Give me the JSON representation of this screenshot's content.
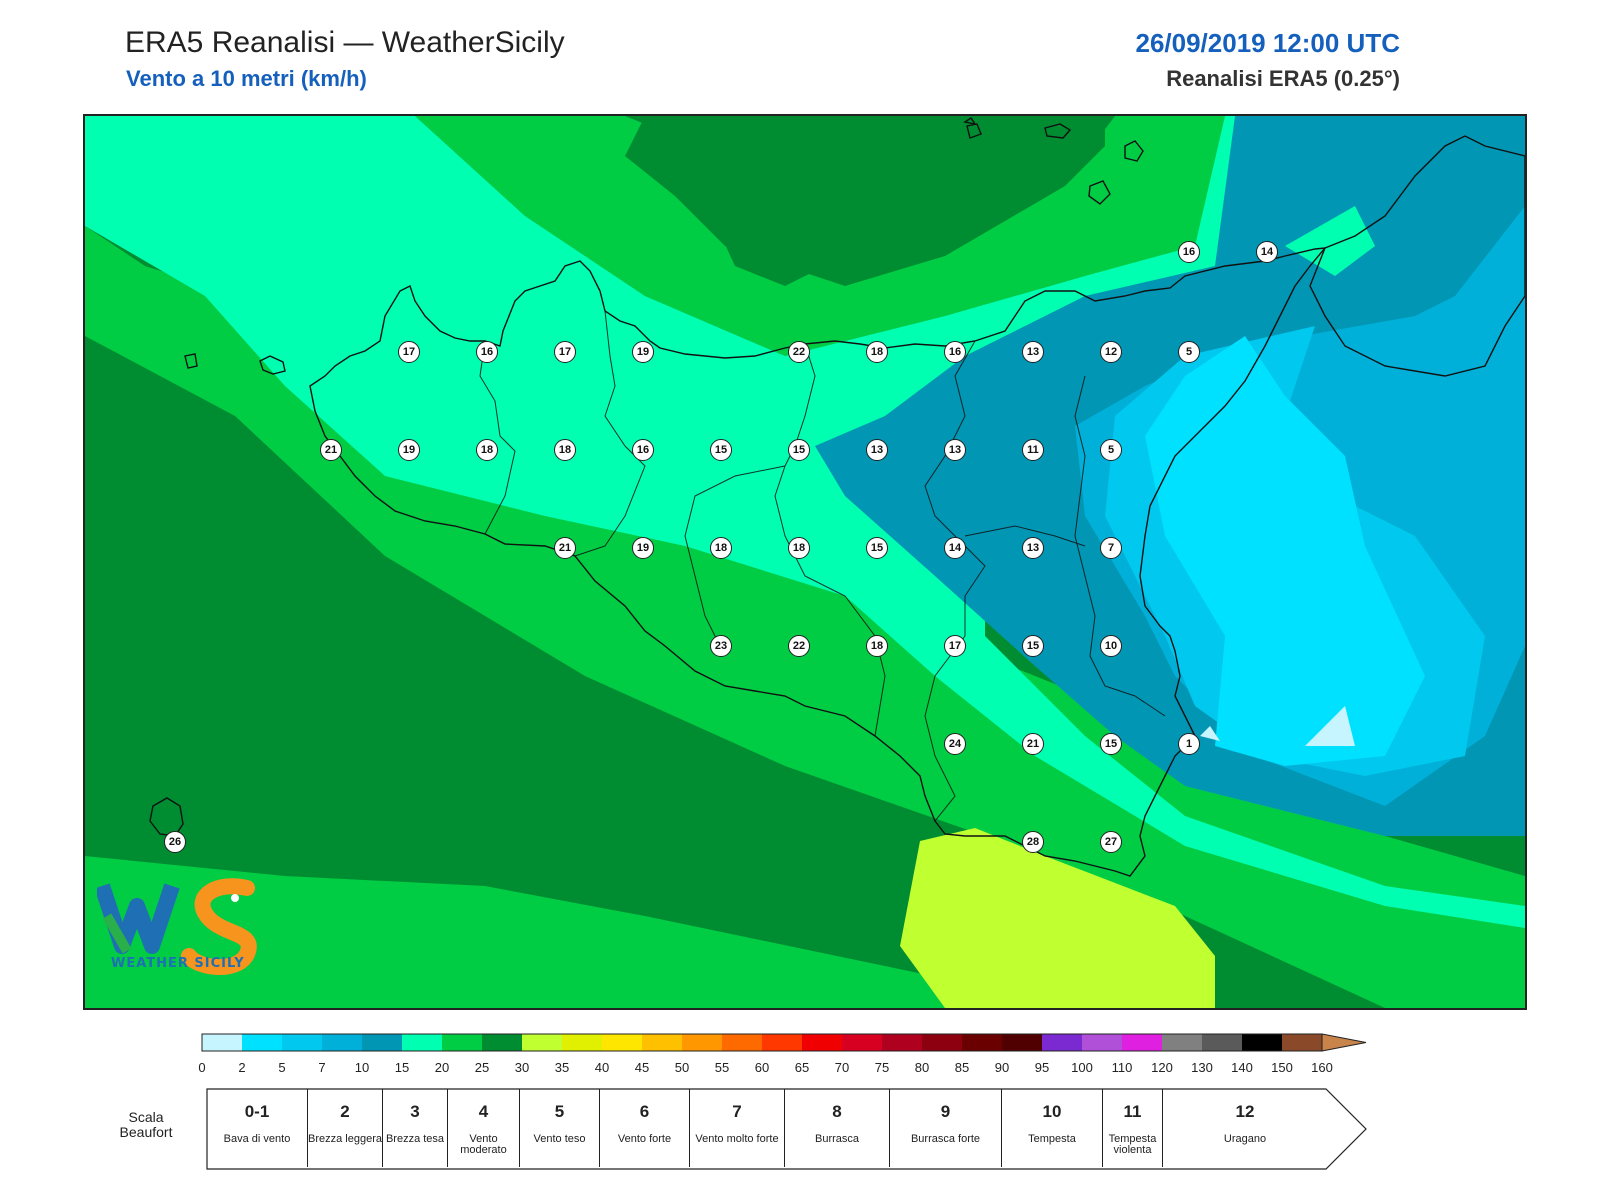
{
  "header": {
    "title": "ERA5 Reanalisi — WeatherSicily",
    "subtitle": "Vento a 10 metri (km/h)",
    "datetime": "26/09/2019 12:00 UTC",
    "source": "Reanalisi ERA5 (0.25°)"
  },
  "logo": {
    "text": "WEATHER SICILY",
    "icon": "ws-logo-icon"
  },
  "palette": {
    "0-2": "#c6f4ff",
    "2-5": "#00e0ff",
    "5-7": "#00c8ee",
    "7-10": "#00b0d8",
    "10-15": "#0096b4",
    "15-20": "#00ffb0",
    "20-25": "#00cc44",
    "25-30": "#008c30",
    "30-35": "#c0ff30"
  },
  "stations": [
    {
      "value": "17"
    },
    {
      "value": "16"
    },
    {
      "value": "17"
    },
    {
      "value": "19"
    },
    {
      "value": "22"
    },
    {
      "value": "18"
    },
    {
      "value": "16"
    },
    {
      "value": "13"
    },
    {
      "value": "12"
    },
    {
      "value": "5"
    },
    {
      "value": "16"
    },
    {
      "value": "14"
    },
    {
      "value": "21"
    },
    {
      "value": "19"
    },
    {
      "value": "18"
    },
    {
      "value": "18"
    },
    {
      "value": "16"
    },
    {
      "value": "15"
    },
    {
      "value": "15"
    },
    {
      "value": "13"
    },
    {
      "value": "13"
    },
    {
      "value": "11"
    },
    {
      "value": "5"
    },
    {
      "value": "21"
    },
    {
      "value": "19"
    },
    {
      "value": "18"
    },
    {
      "value": "18"
    },
    {
      "value": "15"
    },
    {
      "value": "14"
    },
    {
      "value": "13"
    },
    {
      "value": "7"
    },
    {
      "value": "23"
    },
    {
      "value": "22"
    },
    {
      "value": "18"
    },
    {
      "value": "17"
    },
    {
      "value": "15"
    },
    {
      "value": "10"
    },
    {
      "value": "24"
    },
    {
      "value": "21"
    },
    {
      "value": "15"
    },
    {
      "value": "1"
    },
    {
      "value": "26"
    },
    {
      "value": "28"
    },
    {
      "value": "27"
    }
  ],
  "colorbar": {
    "colors": [
      "#c6f4ff",
      "#00e0ff",
      "#00c8ee",
      "#00b0d8",
      "#0096b4",
      "#00ffb0",
      "#00cc44",
      "#008c30",
      "#c0ff30",
      "#e0f000",
      "#ffe600",
      "#ffc000",
      "#ff9800",
      "#ff6a00",
      "#ff3800",
      "#f00000",
      "#d80020",
      "#b00020",
      "#8c0010",
      "#6a0000",
      "#500000",
      "#7a2ad0",
      "#b050d8",
      "#e020e0",
      "#808080",
      "#5a5a5a",
      "#000000",
      "#8a4a2a",
      "#c8844a"
    ],
    "labels": [
      "0",
      "2",
      "5",
      "7",
      "10",
      "15",
      "20",
      "25",
      "30",
      "35",
      "40",
      "45",
      "50",
      "55",
      "60",
      "65",
      "70",
      "75",
      "80",
      "85",
      "90",
      "95",
      "100",
      "110",
      "120",
      "130",
      "140",
      "150",
      "160"
    ]
  },
  "beaufort": {
    "title": "Scala Beaufort",
    "scale": [
      {
        "num": "0-1",
        "desc": "Bava di vento"
      },
      {
        "num": "2",
        "desc": "Brezza leggera"
      },
      {
        "num": "3",
        "desc": "Brezza tesa"
      },
      {
        "num": "4",
        "desc": "Vento moderato"
      },
      {
        "num": "5",
        "desc": "Vento teso"
      },
      {
        "num": "6",
        "desc": "Vento forte"
      },
      {
        "num": "7",
        "desc": "Vento molto forte"
      },
      {
        "num": "8",
        "desc": "Burrasca"
      },
      {
        "num": "9",
        "desc": "Burrasca forte"
      },
      {
        "num": "10",
        "desc": "Tempesta"
      },
      {
        "num": "11",
        "desc": "Tempesta violenta"
      },
      {
        "num": "12",
        "desc": "Uragano"
      }
    ]
  }
}
